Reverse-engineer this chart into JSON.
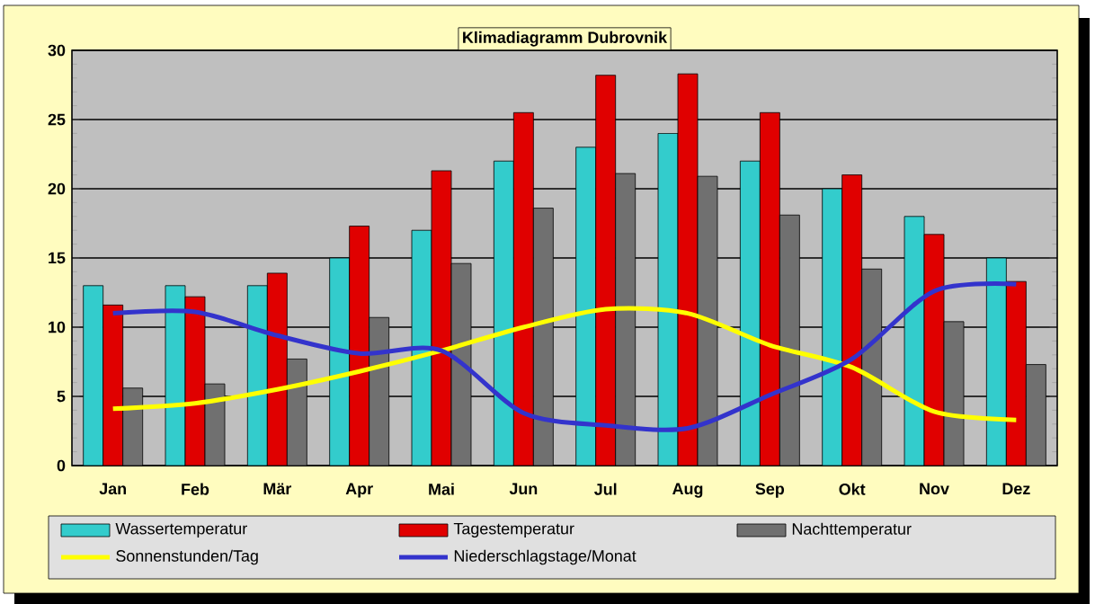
{
  "chart_data": {
    "type": "bar",
    "title": "Klimadiagramm Dubrovnik",
    "categories": [
      "Jan",
      "Feb",
      "Mär",
      "Apr",
      "Mai",
      "Jun",
      "Jul",
      "Aug",
      "Sep",
      "Okt",
      "Nov",
      "Dez"
    ],
    "series": [
      {
        "name": "Wassertemperatur",
        "color": "#33cccc",
        "values": [
          13,
          13,
          13,
          15,
          17,
          22,
          23,
          24,
          22,
          20,
          18,
          15
        ]
      },
      {
        "name": "Tagestemperatur",
        "color": "#e00000",
        "values": [
          11.6,
          12.2,
          13.9,
          17.3,
          21.3,
          25.5,
          28.2,
          28.3,
          25.5,
          21,
          16.7,
          13.3
        ]
      },
      {
        "name": "Nachttemperatur",
        "color": "#707070",
        "values": [
          5.6,
          5.9,
          7.7,
          10.7,
          14.6,
          18.6,
          21.1,
          20.9,
          18.1,
          14.2,
          10.4,
          7.3
        ]
      },
      {
        "name": "Sonnenstunden/Tag",
        "type": "line",
        "color": "#ffff00",
        "values": [
          4.1,
          4.5,
          5.5,
          6.8,
          8.3,
          10.0,
          11.3,
          11.0,
          8.7,
          7.1,
          3.9,
          3.3
        ]
      },
      {
        "name": "Niederschlagstage/Monat",
        "type": "line",
        "color": "#3333cc",
        "values": [
          11.0,
          11.1,
          9.4,
          8.1,
          8.3,
          3.8,
          2.9,
          2.7,
          5.1,
          7.7,
          12.6,
          13.1
        ]
      }
    ],
    "ylim": [
      0,
      30
    ],
    "yticks": [
      0,
      5,
      10,
      15,
      20,
      25,
      30
    ],
    "grid": "y",
    "legend": "bottom",
    "marker": "none"
  }
}
